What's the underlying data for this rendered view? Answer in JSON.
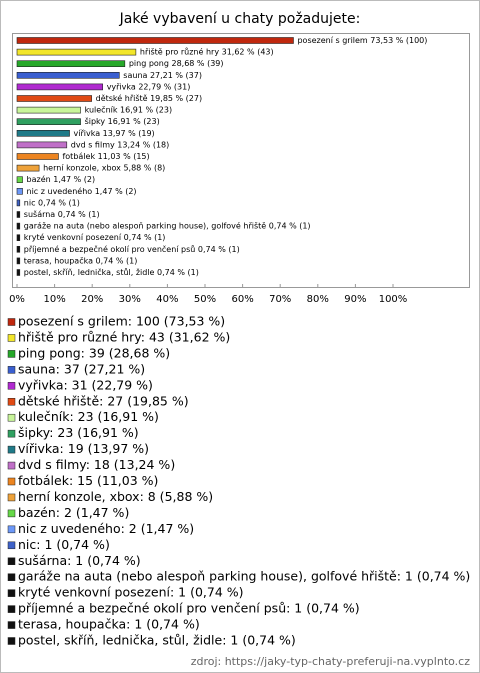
{
  "chart_data": {
    "type": "barh",
    "title": "Jaké vybavení u chaty požadujete:",
    "categories": [
      "posezení s grilem",
      "hřiště pro různé hry",
      "ping pong",
      "sauna",
      "vyřivka",
      "dětské hřiště",
      "kulečník",
      "šipky",
      "vířivka",
      "dvd s filmy",
      "fotbálek",
      "herní konzole, xbox",
      "bazén",
      "nic z uvedeného",
      "nic",
      "sušárna",
      "garáže na auta (nebo alespoň parking house), golfové hřiště",
      "kryté venkovní posezení",
      "příjemné a bezpečné okolí pro venčení psů",
      "terasa, houpačka",
      "postel, skříň, lednička, stůl, židle"
    ],
    "values": [
      73.53,
      31.62,
      28.68,
      27.21,
      22.79,
      19.85,
      16.91,
      16.91,
      13.97,
      13.24,
      11.03,
      5.88,
      1.47,
      1.47,
      0.74,
      0.74,
      0.74,
      0.74,
      0.74,
      0.74,
      0.74
    ],
    "value_labels": [
      "posezení s grilem 73,53 % (100)",
      "hřiště pro různé hry 31,62 % (43)",
      "ping pong 28,68 % (39)",
      "sauna 27,21 % (37)",
      "vyřivka 22,79 % (31)",
      "dětské hřiště 19,85 % (27)",
      "kulečník 16,91 % (23)",
      "šipky 16,91 % (23)",
      "vířivka 13,97 % (19)",
      "dvd s filmy 13,24 % (18)",
      "fotbálek 11,03 % (15)",
      "herní konzole, xbox 5,88 % (8)",
      "bazén 1,47 % (2)",
      "nic z uvedeného 1,47 % (2)",
      "nic 0,74 % (1)",
      "sušárna 0,74 % (1)",
      "garáže na auta (nebo alespoň parking house), golfové hřiště 0,74 % (1)",
      "kryté venkovní posezení 0,74 % (1)",
      "příjemné a bezpečné okolí pro venčení psů 0,74 % (1)",
      "terasa, houpačka 0,74 % (1)",
      "postel, skříň, lednička, stůl, židle 0,74 % (1)"
    ],
    "legend_labels": [
      "posezení s grilem: 100 (73,53 %)",
      "hřiště pro různé hry: 43 (31,62 %)",
      "ping pong: 39 (28,68 %)",
      "sauna: 37 (27,21 %)",
      "vyřivka: 31 (22,79 %)",
      "dětské hřiště: 27 (19,85 %)",
      "kulečník: 23 (16,91 %)",
      "šipky: 23 (16,91 %)",
      "vířivka: 19 (13,97 %)",
      "dvd s filmy: 18 (13,24 %)",
      "fotbálek: 15 (11,03 %)",
      "herní konzole, xbox: 8 (5,88 %)",
      "bazén: 2 (1,47 %)",
      "nic z uvedeného: 2 (1,47 %)",
      "nic: 1 (0,74 %)",
      "sušárna: 1 (0,74 %)",
      "garáže na auta (nebo alespoň parking house), golfové hřiště: 1 (0,74 %)",
      "kryté venkovní posezení: 1 (0,74 %)",
      "příjemné a bezpečné okolí pro venčení psů: 1 (0,74 %)",
      "terasa, houpačka: 1 (0,74 %)",
      "postel, skříň, lednička, stůl, židle: 1 (0,74 %)"
    ],
    "colors": [
      "#c0280e",
      "#f2e62a",
      "#26a829",
      "#3a5fd0",
      "#b02ad0",
      "#e04a14",
      "#c8f59a",
      "#2fa060",
      "#1f7a88",
      "#c070c8",
      "#ec8420",
      "#eea23a",
      "#66d848",
      "#6c98f8",
      "#3e62c8",
      "#111111",
      "#111111",
      "#111111",
      "#111111",
      "#111111",
      "#111111"
    ],
    "xlim": [
      0,
      100
    ],
    "xticks": [
      {
        "value": 0,
        "label": "0%"
      },
      {
        "value": 10,
        "label": "10%"
      },
      {
        "value": 20,
        "label": "20%"
      },
      {
        "value": 30,
        "label": "30%"
      },
      {
        "value": 40,
        "label": "40%"
      },
      {
        "value": 50,
        "label": "50%"
      },
      {
        "value": 60,
        "label": "60%"
      },
      {
        "value": 70,
        "label": "70%"
      },
      {
        "value": 80,
        "label": "80%"
      },
      {
        "value": 90,
        "label": "90%"
      },
      {
        "value": 100,
        "label": "100%"
      }
    ],
    "source": "zdroj: https://jaky-typ-chaty-preferuji-na.vyplnto.cz"
  }
}
